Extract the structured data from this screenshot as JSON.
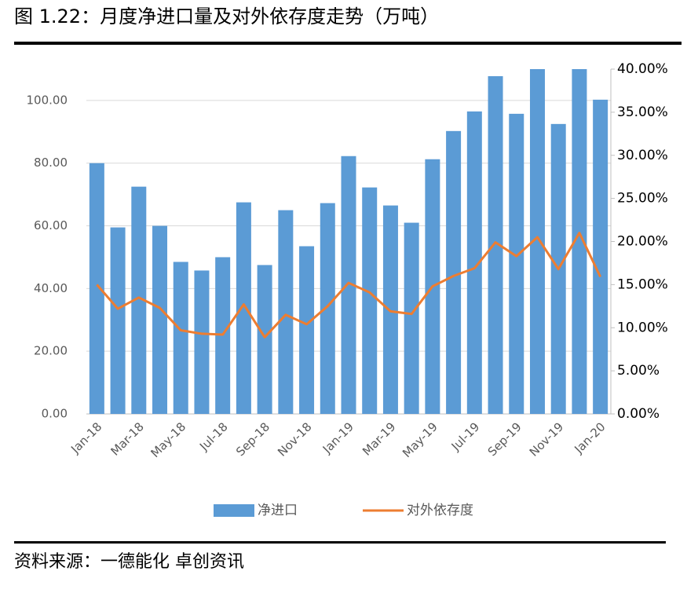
{
  "chart_data": {
    "type": "bar_line",
    "title": "图 1.22：月度净进口量及对外依存度走势（万吨）",
    "source": "资料来源：一德能化  卓创资讯",
    "categories": [
      "Jan-18",
      null,
      "Mar-18",
      null,
      "May-18",
      null,
      "Jul-18",
      null,
      "Sep-18",
      null,
      "Nov-18",
      null,
      "Jan-19",
      null,
      "Mar-19",
      null,
      "May-19",
      null,
      "Jul-19",
      null,
      "Sep-19",
      null,
      "Nov-19",
      null,
      "Jan-20"
    ],
    "series": [
      {
        "name": "净进口",
        "type": "bar",
        "color": "#5b9bd5",
        "values": [
          80,
          59.5,
          72.5,
          60,
          48.5,
          45.75,
          50,
          67.5,
          47.5,
          65,
          53.5,
          67.25,
          82.25,
          72.25,
          66.5,
          61,
          81.25,
          90.25,
          96.5,
          107.75,
          95.75,
          110,
          92.5,
          110,
          100.25
        ]
      },
      {
        "name": "对外依存度",
        "type": "line",
        "axis": "y2",
        "color": "#ed7d31",
        "values": [
          15.0,
          12.2,
          13.5,
          12.3,
          9.7,
          9.3,
          9.2,
          12.7,
          8.9,
          11.5,
          10.4,
          12.5,
          15.2,
          14.1,
          11.9,
          11.6,
          14.8,
          16.0,
          16.9,
          19.9,
          18.3,
          20.5,
          16.8,
          21.0,
          15.9
        ]
      }
    ],
    "ylim": [
      0,
      110
    ],
    "yticks": [
      {
        "value": 0,
        "label": "0.00"
      },
      {
        "value": 20,
        "label": "20.00"
      },
      {
        "value": 40,
        "label": "40.00"
      },
      {
        "value": 60,
        "label": "60.00"
      },
      {
        "value": 80,
        "label": "80.00"
      },
      {
        "value": 100,
        "label": "100.00"
      }
    ],
    "y2lim": [
      0,
      40
    ],
    "y2ticks": [
      {
        "value": 0,
        "label": "0.00%"
      },
      {
        "value": 5,
        "label": "5.00%"
      },
      {
        "value": 10,
        "label": "10.00%"
      },
      {
        "value": 15,
        "label": "15.00%"
      },
      {
        "value": 20,
        "label": "20.00%"
      },
      {
        "value": 25,
        "label": "25.00%"
      },
      {
        "value": 30,
        "label": "30.00%"
      },
      {
        "value": 35,
        "label": "35.00%"
      },
      {
        "value": 40,
        "label": "40.00%"
      }
    ],
    "grid": true,
    "legend": "bottom"
  }
}
